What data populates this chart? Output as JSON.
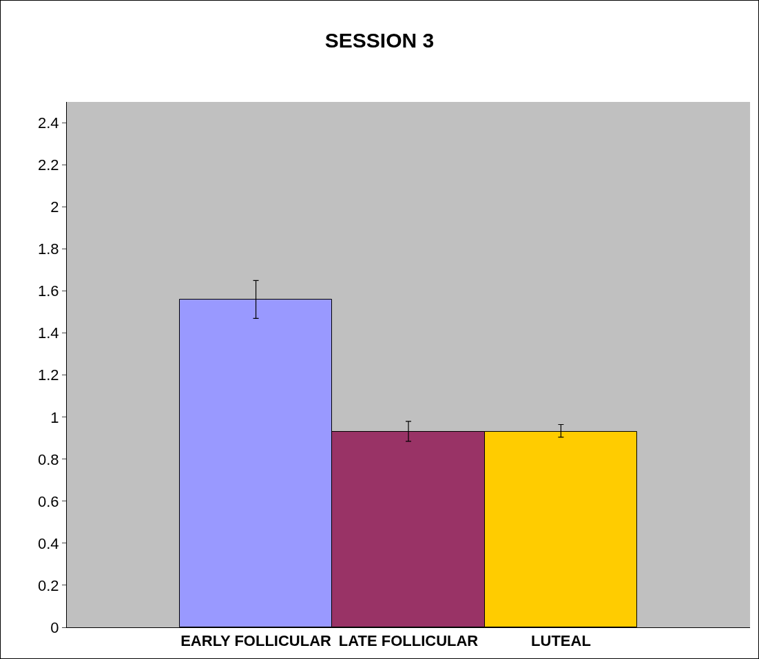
{
  "chart_data": {
    "type": "bar",
    "title": "SESSION 3",
    "categories": [
      "EARLY FOLLICULAR",
      "LATE FOLLICULAR",
      "LUTEAL"
    ],
    "values": [
      1.56,
      0.93,
      0.93
    ],
    "errors": [
      [
        1.47,
        1.65
      ],
      [
        0.885,
        0.98
      ],
      [
        0.905,
        0.965
      ]
    ],
    "colors": [
      "#9999ff",
      "#993366",
      "#ffcc00"
    ],
    "ylim": [
      0,
      2.5
    ],
    "yticks": [
      0,
      0.2,
      0.4,
      0.6,
      0.8,
      1,
      1.2,
      1.4,
      1.6,
      1.8,
      2,
      2.2,
      2.4
    ],
    "grid": false
  }
}
